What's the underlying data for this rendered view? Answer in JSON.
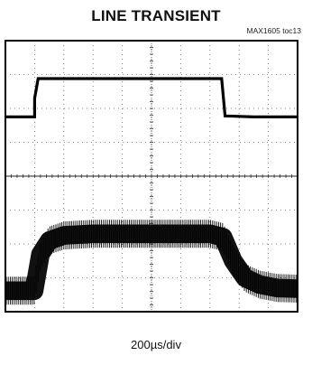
{
  "chart_data": {
    "type": "line",
    "title": "LINE TRANSIENT",
    "figure_ref": "MAX1605 toc13",
    "xlabel": "200µs/div",
    "x_divisions": 10,
    "y_divisions": 8,
    "grid": true,
    "xlim": [
      0,
      10
    ],
    "ylim": [
      0,
      8
    ],
    "series": [
      {
        "trace": "upper",
        "x": [
          0,
          1.0,
          1.0,
          1.12,
          3.0,
          5.0,
          7.0,
          7.4,
          7.52,
          8.5,
          10
        ],
        "y": [
          5.75,
          5.75,
          6.3,
          6.88,
          6.88,
          6.88,
          6.88,
          6.88,
          5.78,
          5.75,
          5.75
        ]
      },
      {
        "trace": "lower",
        "x": [
          0,
          0.98,
          1.2,
          1.5,
          2.0,
          3.0,
          5.0,
          7.0,
          7.45,
          7.8,
          8.2,
          8.7,
          9.3,
          10
        ],
        "y": [
          0.62,
          0.62,
          1.7,
          2.1,
          2.25,
          2.3,
          2.3,
          2.3,
          2.2,
          1.5,
          1.0,
          0.8,
          0.7,
          0.68
        ],
        "ripple_band": 0.55
      }
    ]
  }
}
